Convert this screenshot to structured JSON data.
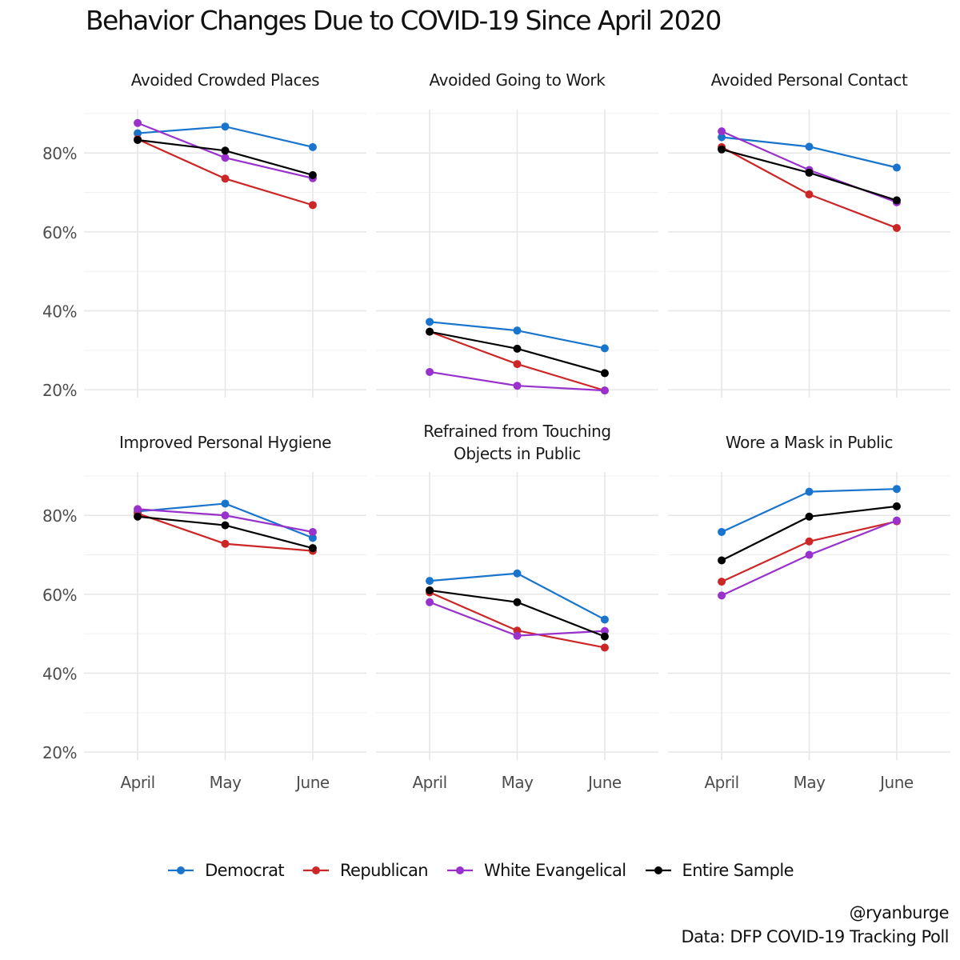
{
  "title": "Behavior Changes Due to COVID-19 Since April 2020",
  "caption": {
    "line1": "@ryanburge",
    "line2": "Data: DFP COVID-19 Tracking Poll"
  },
  "legend": [
    {
      "name": "Democrat",
      "color": "#1874CD"
    },
    {
      "name": "Republican",
      "color": "#CD2626"
    },
    {
      "name": "White Evangelical",
      "color": "#9932CC"
    },
    {
      "name": "Entire Sample",
      "color": "#000000"
    }
  ],
  "chart_data": {
    "type": "line",
    "x": [
      "April",
      "May",
      "June"
    ],
    "ylim": [
      18,
      91
    ],
    "yticks": [
      20,
      40,
      60,
      80
    ],
    "ytick_labels": [
      "20%",
      "40%",
      "60%",
      "80%"
    ],
    "grid": true,
    "legend_position": "bottom",
    "panels": [
      {
        "title": [
          "Avoided Crowded Places"
        ],
        "series": [
          {
            "name": "Democrat",
            "values": [
              85,
              86.7,
              81.5
            ]
          },
          {
            "name": "Republican",
            "values": [
              83.5,
              73.5,
              66.8
            ]
          },
          {
            "name": "White Evangelical",
            "values": [
              87.6,
              78.8,
              73.6
            ]
          },
          {
            "name": "Entire Sample",
            "values": [
              83.3,
              80.6,
              74.4
            ]
          }
        ]
      },
      {
        "title": [
          "Avoided Going to Work"
        ],
        "series": [
          {
            "name": "Democrat",
            "values": [
              37.2,
              35,
              30.5
            ]
          },
          {
            "name": "Republican",
            "values": [
              34.7,
              26.5,
              19.8
            ]
          },
          {
            "name": "White Evangelical",
            "values": [
              24.5,
              21,
              19.8
            ]
          },
          {
            "name": "Entire Sample",
            "values": [
              34.7,
              30.4,
              24.2
            ]
          }
        ]
      },
      {
        "title": [
          "Avoided Personal Contact"
        ],
        "series": [
          {
            "name": "Democrat",
            "values": [
              84,
              81.6,
              76.3
            ]
          },
          {
            "name": "Republican",
            "values": [
              81.5,
              69.5,
              61
            ]
          },
          {
            "name": "White Evangelical",
            "values": [
              85.5,
              75.7,
              67.5
            ]
          },
          {
            "name": "Entire Sample",
            "values": [
              80.9,
              75,
              68
            ]
          }
        ]
      },
      {
        "title": [
          "Improved Personal Hygiene"
        ],
        "series": [
          {
            "name": "Democrat",
            "values": [
              81,
              83,
              74.3
            ]
          },
          {
            "name": "Republican",
            "values": [
              80.5,
              72.8,
              71
            ]
          },
          {
            "name": "White Evangelical",
            "values": [
              81.6,
              80,
              75.8
            ]
          },
          {
            "name": "Entire Sample",
            "values": [
              79.7,
              77.5,
              71.7
            ]
          }
        ]
      },
      {
        "title": [
          "Refrained from Touching",
          "Objects in Public"
        ],
        "series": [
          {
            "name": "Democrat",
            "values": [
              63.4,
              65.3,
              53.6
            ]
          },
          {
            "name": "Republican",
            "values": [
              60.5,
              50.8,
              46.5
            ]
          },
          {
            "name": "White Evangelical",
            "values": [
              58,
              49.5,
              50.7
            ]
          },
          {
            "name": "Entire Sample",
            "values": [
              61,
              58,
              49.3
            ]
          }
        ]
      },
      {
        "title": [
          "Wore a Mask in Public"
        ],
        "series": [
          {
            "name": "Democrat",
            "values": [
              75.8,
              86,
              86.7
            ]
          },
          {
            "name": "Republican",
            "values": [
              63.2,
              73.4,
              78.5
            ]
          },
          {
            "name": "White Evangelical",
            "values": [
              59.7,
              70,
              78.7
            ]
          },
          {
            "name": "Entire Sample",
            "values": [
              68.6,
              79.7,
              82.3
            ]
          }
        ]
      }
    ]
  }
}
